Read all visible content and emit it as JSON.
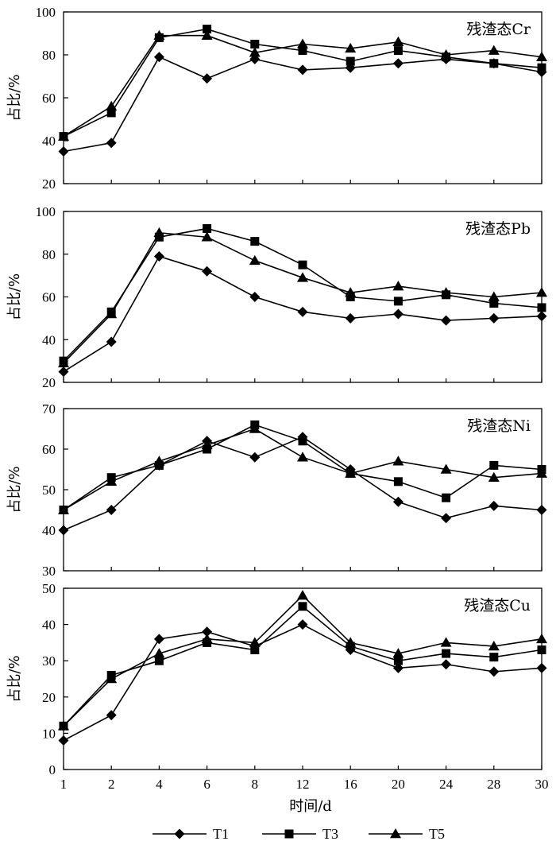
{
  "chart_data": {
    "type": "line",
    "x_categories": [
      "1",
      "2",
      "4",
      "6",
      "8",
      "12",
      "16",
      "20",
      "24",
      "28",
      "30"
    ],
    "xlabel": "时间/d",
    "legend": [
      {
        "name": "T1",
        "marker": "diamond"
      },
      {
        "name": "T3",
        "marker": "square"
      },
      {
        "name": "T5",
        "marker": "triangle"
      }
    ],
    "legend_position": "bottom",
    "panels": [
      {
        "title": "残渣态Cr",
        "ylabel": "占比/%",
        "ylim": [
          20,
          100
        ],
        "yticks": [
          20,
          40,
          60,
          80,
          100
        ],
        "series": [
          {
            "name": "T1",
            "values": [
              35,
              39,
              79,
              69,
              78,
              73,
              74,
              76,
              78,
              76,
              72
            ]
          },
          {
            "name": "T3",
            "values": [
              42,
              53,
              88,
              92,
              85,
              82,
              77,
              82,
              79,
              76,
              74
            ]
          },
          {
            "name": "T5",
            "values": [
              42,
              56,
              89,
              89,
              81,
              85,
              83,
              86,
              80,
              82,
              79
            ]
          }
        ]
      },
      {
        "title": "残渣态Pb",
        "ylabel": "占比/%",
        "ylim": [
          20,
          100
        ],
        "yticks": [
          20,
          40,
          60,
          80,
          100
        ],
        "series": [
          {
            "name": "T1",
            "values": [
              25,
              39,
              79,
              72,
              60,
              53,
              50,
              52,
              49,
              50,
              51
            ]
          },
          {
            "name": "T3",
            "values": [
              30,
              53,
              88,
              92,
              86,
              75,
              60,
              58,
              61,
              57,
              55
            ]
          },
          {
            "name": "T5",
            "values": [
              29,
              52,
              90,
              88,
              77,
              69,
              62,
              65,
              62,
              60,
              62
            ]
          }
        ]
      },
      {
        "title": "残渣态Ni",
        "ylabel": "占比/%",
        "ylim": [
          30,
          70
        ],
        "yticks": [
          30,
          40,
          50,
          60,
          70
        ],
        "series": [
          {
            "name": "T1",
            "values": [
              40,
              45,
              56,
              62,
              58,
              63,
              55,
              47,
              43,
              46,
              45
            ]
          },
          {
            "name": "T3",
            "values": [
              45,
              53,
              56,
              60,
              66,
              62,
              54,
              52,
              48,
              56,
              55
            ]
          },
          {
            "name": "T5",
            "values": [
              45,
              52,
              57,
              61,
              65,
              58,
              54,
              57,
              55,
              53,
              54
            ]
          }
        ]
      },
      {
        "title": "残渣态Cu",
        "ylabel": "占比/%",
        "ylim": [
          0,
          50
        ],
        "yticks": [
          0,
          10,
          20,
          30,
          40,
          50
        ],
        "series": [
          {
            "name": "T1",
            "values": [
              8,
              15,
              36,
              38,
              34,
              40,
              33,
              28,
              29,
              27,
              28
            ]
          },
          {
            "name": "T3",
            "values": [
              12,
              26,
              30,
              35,
              33,
              45,
              34,
              30,
              32,
              31,
              33
            ]
          },
          {
            "name": "T5",
            "values": [
              12,
              25,
              32,
              36,
              35,
              48,
              35,
              32,
              35,
              34,
              36
            ]
          }
        ]
      }
    ]
  }
}
